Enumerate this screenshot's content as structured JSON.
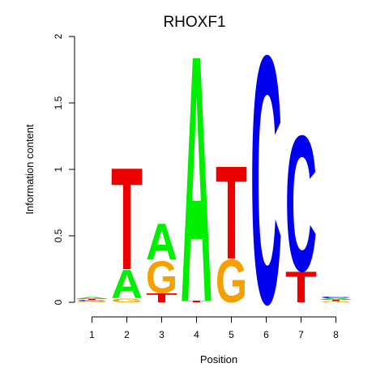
{
  "chart_data": {
    "type": "sequence-logo",
    "title": "RHOXF1",
    "xlabel": "Position",
    "ylabel": "Information content",
    "ylim": [
      0,
      2
    ],
    "y_ticks": [
      "0",
      "0.5",
      "1",
      "1.5",
      "2"
    ],
    "y_tick_values": [
      0,
      0.5,
      1,
      1.5,
      2
    ],
    "x_ticks": [
      "1",
      "2",
      "3",
      "4",
      "5",
      "6",
      "7",
      "8"
    ],
    "colors": {
      "A": "#00ee00",
      "C": "#0000ee",
      "G": "#f5a000",
      "T": "#ee0000"
    },
    "positions": [
      {
        "pos": "1",
        "letters": [
          {
            "base": "G",
            "height": 0.008
          },
          {
            "base": "C",
            "height": 0.008
          },
          {
            "base": "T",
            "height": 0.012
          },
          {
            "base": "A",
            "height": 0.012
          }
        ]
      },
      {
        "pos": "2",
        "letters": [
          {
            "base": "G",
            "height": 0.03
          },
          {
            "base": "A",
            "height": 0.22
          },
          {
            "base": "T",
            "height": 0.79
          }
        ]
      },
      {
        "pos": "3",
        "letters": [
          {
            "base": "T",
            "height": 0.07
          },
          {
            "base": "G",
            "height": 0.25
          },
          {
            "base": "A",
            "height": 0.28
          }
        ]
      },
      {
        "pos": "4",
        "letters": [
          {
            "base": "T",
            "height": 0.01
          },
          {
            "base": "A",
            "height": 1.91
          }
        ]
      },
      {
        "pos": "5",
        "letters": [
          {
            "base": "G",
            "height": 0.33
          },
          {
            "base": "T",
            "height": 0.72
          }
        ]
      },
      {
        "pos": "6",
        "letters": [
          {
            "base": "C",
            "height": 1.92
          }
        ]
      },
      {
        "pos": "7",
        "letters": [
          {
            "base": "T",
            "height": 0.24
          },
          {
            "base": "C",
            "height": 1.05
          }
        ]
      },
      {
        "pos": "8",
        "letters": [
          {
            "base": "G",
            "height": 0.008
          },
          {
            "base": "T",
            "height": 0.012
          },
          {
            "base": "A",
            "height": 0.012
          },
          {
            "base": "C",
            "height": 0.012
          }
        ]
      }
    ]
  }
}
